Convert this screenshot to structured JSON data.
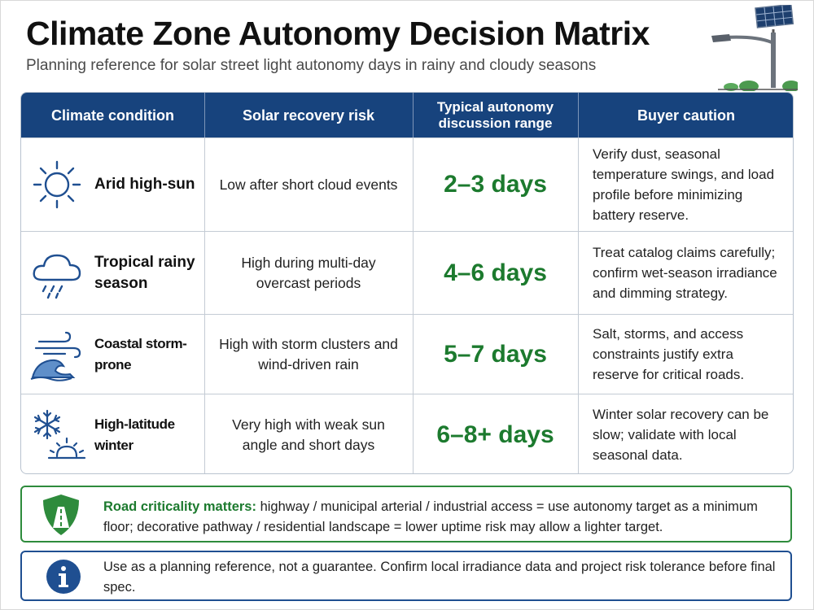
{
  "title": "Climate Zone Autonomy Decision Matrix",
  "subtitle": "Planning reference for solar street light autonomy days in rainy and cloudy seasons",
  "header_icon": "solar-street-light-icon",
  "table": {
    "headers": [
      "Climate condition",
      "Solar recovery risk",
      "Typical autonomy discussion range",
      "Buyer caution"
    ],
    "rows": [
      {
        "icon": "sun-icon",
        "condition": "Arid high-sun",
        "risk": "Low after short cloud events",
        "range": "2–3 days",
        "caution": "Verify dust, seasonal temperature swings, and load profile before minimizing battery reserve."
      },
      {
        "icon": "rain-cloud-icon",
        "condition": "Tropical rainy season",
        "risk": "High during multi-day overcast periods",
        "range": "4–6 days",
        "caution": "Treat catalog claims carefully; confirm wet-season irradiance and dimming strategy."
      },
      {
        "icon": "wind-wave-icon",
        "condition": "Coastal storm-prone",
        "risk": "High with storm clusters and wind-driven rain",
        "range": "5–7 days",
        "caution": "Salt, storms, and access constraints justify extra reserve for critical roads."
      },
      {
        "icon": "snowflake-low-sun-icon",
        "condition": "High-latitude winter",
        "risk": "Very high with weak sun angle and short days",
        "range": "6–8+ days",
        "caution": "Winter solar recovery can be slow; validate with local seasonal data."
      }
    ]
  },
  "criticality_note": {
    "icon": "road-shield-icon",
    "lead": "Road criticality matters:",
    "text": "highway / municipal arterial / industrial access = use autonomy target as a minimum floor; decorative pathway / residential landscape = lower uptime risk may allow a lighter target."
  },
  "reference_note": {
    "icon": "info-icon",
    "text": "Use as a planning reference, not a guarantee. Confirm local irradiance data and project risk tolerance before final spec."
  },
  "colors": {
    "header_bg": "#17437d",
    "range_green": "#1c7a2e",
    "note_green": "#2e8b3c",
    "note_blue": "#1f4f91",
    "icon_blue": "#1f4f91"
  }
}
